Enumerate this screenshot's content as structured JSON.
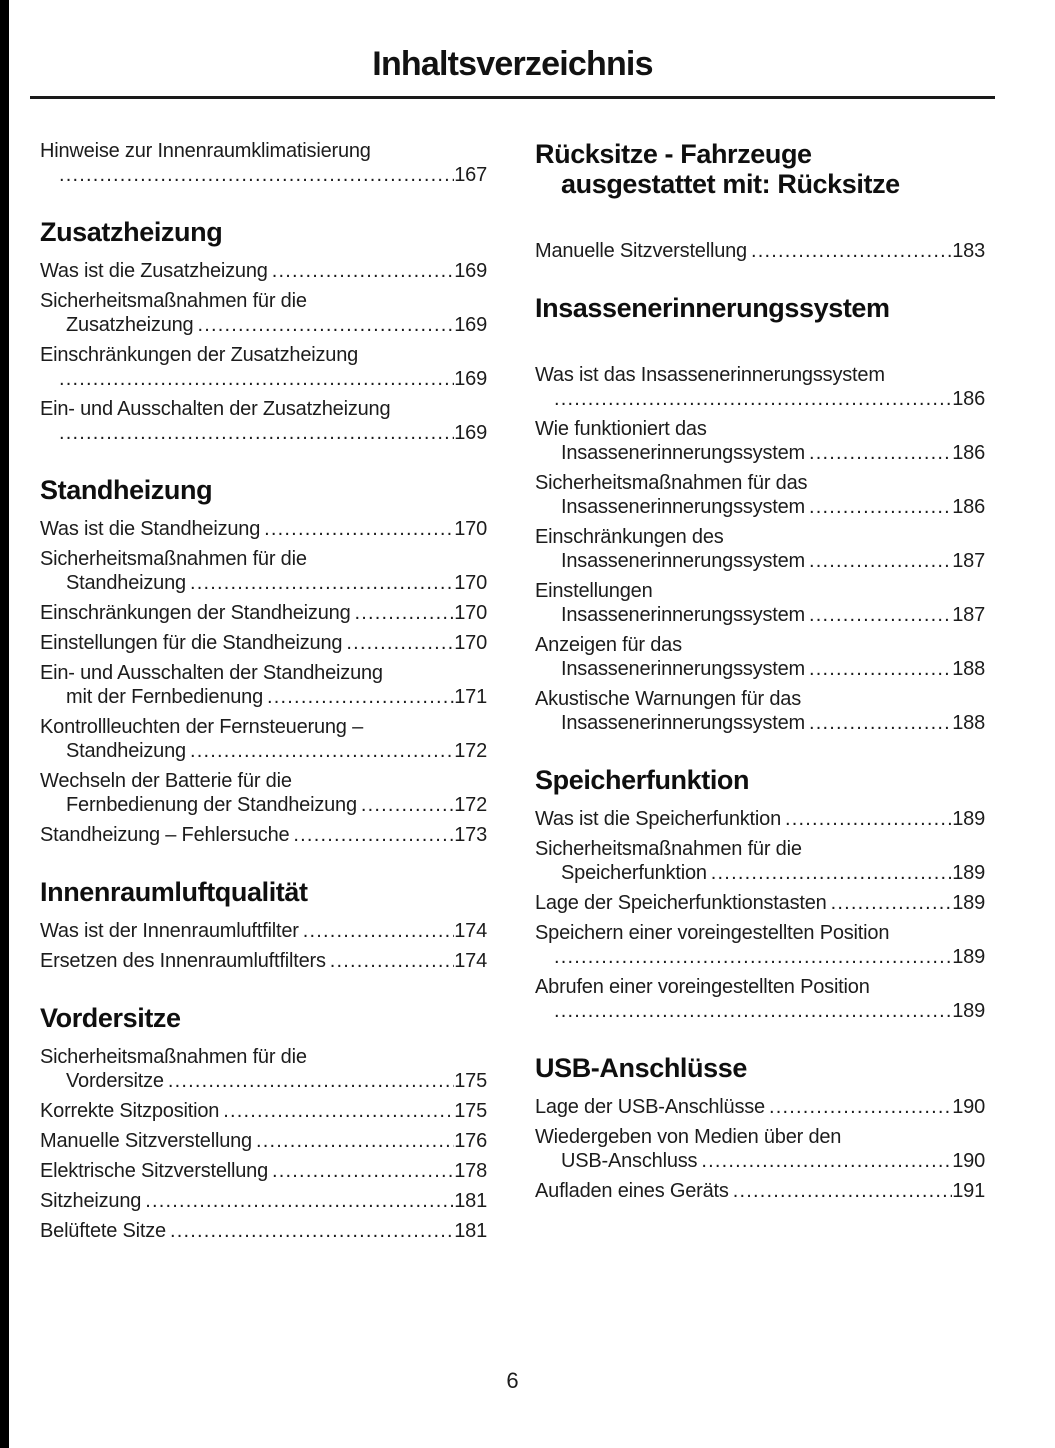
{
  "page": {
    "title": "Inhaltsverzeichnis",
    "page_number": "6"
  },
  "columns": [
    {
      "blocks": [
        {
          "type": "entry",
          "pre": [
            "Hinweise zur Innenraumklimatisierung"
          ],
          "tail": "",
          "page": "167"
        },
        {
          "type": "section",
          "lines": [
            "Zusatzheizung"
          ]
        },
        {
          "type": "entry",
          "pre": [],
          "tail": "Was ist die Zusatzheizung",
          "page": "169"
        },
        {
          "type": "entry",
          "pre": [
            "Sicherheitsmaßnahmen für die"
          ],
          "tail": "Zusatzheizung",
          "page": "169"
        },
        {
          "type": "entry",
          "pre": [
            "Einschränkungen der Zusatzheizung"
          ],
          "tail": "",
          "page": "169"
        },
        {
          "type": "entry",
          "pre": [
            "Ein- und Ausschalten der Zusatzheizung"
          ],
          "tail": "",
          "page": "169"
        },
        {
          "type": "section",
          "lines": [
            "Standheizung"
          ]
        },
        {
          "type": "entry",
          "pre": [],
          "tail": "Was ist die Standheizung",
          "page": "170"
        },
        {
          "type": "entry",
          "pre": [
            "Sicherheitsmaßnahmen für die"
          ],
          "tail": "Standheizung",
          "page": "170"
        },
        {
          "type": "entry",
          "pre": [],
          "tail": "Einschränkungen der Standheizung",
          "page": "170"
        },
        {
          "type": "entry",
          "pre": [],
          "tail": "Einstellungen für die Standheizung",
          "page": "170"
        },
        {
          "type": "entry",
          "pre": [
            "Ein- und Ausschalten der Standheizung"
          ],
          "tail": "mit der Fernbedienung",
          "page": "171"
        },
        {
          "type": "entry",
          "pre": [
            "Kontrollleuchten der Fernsteuerung –"
          ],
          "tail": "Standheizung",
          "page": "172"
        },
        {
          "type": "entry",
          "pre": [
            "Wechseln der Batterie für die"
          ],
          "tail": "Fernbedienung der Standheizung",
          "page": "172"
        },
        {
          "type": "entry",
          "pre": [],
          "tail": "Standheizung – Fehlersuche",
          "page": "173"
        },
        {
          "type": "section",
          "lines": [
            "Innenraumluftqualität"
          ]
        },
        {
          "type": "entry",
          "pre": [],
          "tail": "Was ist der Innenraumluftfilter",
          "page": "174"
        },
        {
          "type": "entry",
          "pre": [],
          "tail": "Ersetzen des Innenraumluftfilters",
          "page": "174"
        },
        {
          "type": "section",
          "lines": [
            "Vordersitze"
          ]
        },
        {
          "type": "entry",
          "pre": [
            "Sicherheitsmaßnahmen für die"
          ],
          "tail": "Vordersitze",
          "page": "175"
        },
        {
          "type": "entry",
          "pre": [],
          "tail": "Korrekte Sitzposition",
          "page": "175"
        },
        {
          "type": "entry",
          "pre": [],
          "tail": "Manuelle Sitzverstellung",
          "page": "176"
        },
        {
          "type": "entry",
          "pre": [],
          "tail": "Elektrische Sitzverstellung",
          "page": "178"
        },
        {
          "type": "entry",
          "pre": [],
          "tail": "Sitzheizung",
          "page": "181"
        },
        {
          "type": "entry",
          "pre": [],
          "tail": "Belüftete Sitze",
          "page": "181"
        }
      ]
    },
    {
      "blocks": [
        {
          "type": "section",
          "lines": [
            "Rücksitze - Fahrzeuge",
            "ausgestattet mit: Rücksitze"
          ],
          "gap_after": true
        },
        {
          "type": "entry",
          "pre": [],
          "tail": "Manuelle Sitzverstellung",
          "page": "183"
        },
        {
          "type": "section",
          "lines": [
            "Insassenerinnerungssystem"
          ],
          "gap_after": true
        },
        {
          "type": "entry",
          "pre": [
            "Was ist das Insassenerinnerungssystem"
          ],
          "tail": "",
          "page": "186"
        },
        {
          "type": "entry",
          "pre": [
            "Wie funktioniert das"
          ],
          "tail": "Insassenerinnerungssystem",
          "page": "186"
        },
        {
          "type": "entry",
          "pre": [
            "Sicherheitsmaßnahmen für das"
          ],
          "tail": "Insassenerinnerungssystem",
          "page": "186"
        },
        {
          "type": "entry",
          "pre": [
            "Einschränkungen des"
          ],
          "tail": "Insassenerinnerungssystem",
          "page": "187"
        },
        {
          "type": "entry",
          "pre": [
            "Einstellungen"
          ],
          "tail": "Insassenerinnerungssystem",
          "page": "187"
        },
        {
          "type": "entry",
          "pre": [
            "Anzeigen für das"
          ],
          "tail": "Insassenerinnerungssystem",
          "page": "188"
        },
        {
          "type": "entry",
          "pre": [
            "Akustische Warnungen für das"
          ],
          "tail": "Insassenerinnerungssystem",
          "page": "188"
        },
        {
          "type": "section",
          "lines": [
            "Speicherfunktion"
          ]
        },
        {
          "type": "entry",
          "pre": [],
          "tail": "Was ist die Speicherfunktion",
          "page": "189"
        },
        {
          "type": "entry",
          "pre": [
            "Sicherheitsmaßnahmen für die"
          ],
          "tail": "Speicherfunktion",
          "page": "189"
        },
        {
          "type": "entry",
          "pre": [],
          "tail": "Lage der Speicherfunktionstasten",
          "page": "189"
        },
        {
          "type": "entry",
          "pre": [
            "Speichern einer voreingestellten Position"
          ],
          "tail": "",
          "page": "189"
        },
        {
          "type": "entry",
          "pre": [
            "Abrufen einer voreingestellten Position"
          ],
          "tail": "",
          "page": "189"
        },
        {
          "type": "section",
          "lines": [
            "USB-Anschlüsse"
          ]
        },
        {
          "type": "entry",
          "pre": [],
          "tail": "Lage der USB-Anschlüsse",
          "page": "190"
        },
        {
          "type": "entry",
          "pre": [
            "Wiedergeben von Medien über den"
          ],
          "tail": "USB-Anschluss",
          "page": "190"
        },
        {
          "type": "entry",
          "pre": [],
          "tail": "Aufladen eines Geräts",
          "page": "191"
        }
      ]
    }
  ]
}
